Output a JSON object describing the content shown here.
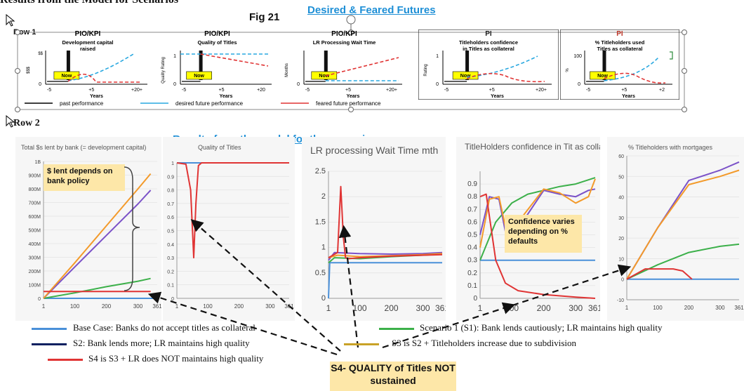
{
  "header": {
    "title": "Results from the Model for Scenarios",
    "fig_label": "Fig 21",
    "desired_feared": "Desired & Feared Futures",
    "results_heading": "Results from the model for the scenarios",
    "row1_label": "Row 1",
    "row2_label": "Row 2"
  },
  "top_panels": [
    {
      "heading": "PIO/KPI",
      "title": "Development capital raised",
      "ylabel": "$$$",
      "yaxis": "$$",
      "xlabel": "Years",
      "ticks": [
        "-5",
        "+5",
        "+20+"
      ],
      "now": "Now",
      "zero": "0"
    },
    {
      "heading": "PIO/KPI",
      "title": "Quality of Titles",
      "ylabel": "Quality Rating",
      "xlabel": "Years",
      "ticks": [
        "-5",
        "+5",
        "+20"
      ],
      "now": "Now",
      "zero": "0",
      "one": "1"
    },
    {
      "heading": "PIO/KPI",
      "title": "LR Processing Wait Time",
      "ylabel": "Months",
      "xlabel": "Years",
      "ticks": [
        "-5",
        "+5",
        "+20+"
      ],
      "now": "Now",
      "zero": "0"
    },
    {
      "heading": "PI",
      "title": "Titleholders confidence in Titles as collateral",
      "ylabel": "Rating",
      "xlabel": "Years",
      "ticks": [
        "-5",
        "+5",
        "+20+"
      ],
      "now": "Now",
      "zero": "0",
      "one": "1"
    },
    {
      "heading": "PI",
      "title": "% Titleholders used Titles as collateral",
      "ylabel": "%",
      "xlabel": "Years",
      "ticks": [
        "-5",
        "+5",
        "+2"
      ],
      "now": "Now",
      "zero": "0",
      "hundred": "100"
    }
  ],
  "top_legend": {
    "past": "past performance",
    "desired": "desired future performance",
    "feared": "feared future performance"
  },
  "chart_titles": [
    "Total $s lent by bank (= development capital)",
    "Quality of Titles",
    "LR processing Wait Time mth",
    "TitleHolders confidence in Tit as collat",
    "% Titleholders with mortgages"
  ],
  "notes": {
    "bank_policy": "$ lent depends on bank policy",
    "confidence": "Confidence varies depending on % defaults",
    "s4_quality": "S4- QUALITY of Titles NOT sustained"
  },
  "legend": {
    "base": "Base Case: Banks do not accept titles as collateral",
    "s1": "Scenario 1 (S1): Bank lends cautiously; LR maintains high quality",
    "s2": "S2: Bank lends more; LR maintains high quality",
    "s3": "S3 is S2 + Titleholders increase due to subdivision",
    "s4": "S4 is S3 + LR does NOT maintains high quality"
  },
  "colors": {
    "base": "#4a90d9",
    "s1": "#3cb04a",
    "s2": "#7b52c8",
    "s3": "#f39a2a",
    "s4": "#e03434",
    "s2_legend": "#0a2060",
    "s3_legend": "#c9a227",
    "accent": "#1e8fd6",
    "note_bg": "#fde7a8"
  },
  "chart_data": [
    {
      "type": "line",
      "title": "Total $s lent by bank (= development capital)",
      "x_ticks": [
        "1",
        "100",
        "200",
        "300",
        "361"
      ],
      "y_ticks": [
        "0",
        "100M",
        "200M",
        "300M",
        "400M",
        "500M",
        "600M",
        "700M",
        "800M",
        "900M",
        "1B"
      ],
      "ylim": [
        0,
        1000
      ],
      "series": [
        {
          "key": "base",
          "x": [
            1,
            361
          ],
          "y": [
            0,
            0
          ]
        },
        {
          "key": "s1",
          "x": [
            1,
            100,
            200,
            300,
            340
          ],
          "y": [
            0,
            40,
            85,
            125,
            145
          ]
        },
        {
          "key": "s2",
          "x": [
            1,
            100,
            200,
            300,
            340
          ],
          "y": [
            0,
            230,
            460,
            690,
            790
          ]
        },
        {
          "key": "s3",
          "x": [
            1,
            100,
            200,
            300,
            340
          ],
          "y": [
            0,
            260,
            530,
            800,
            910
          ]
        },
        {
          "key": "s4",
          "x": [
            1,
            100,
            200,
            300,
            340
          ],
          "y": [
            50,
            50,
            50,
            50,
            50
          ]
        }
      ]
    },
    {
      "type": "line",
      "title": "Quality of Titles",
      "x_ticks": [
        "1",
        "100",
        "200",
        "300",
        "361"
      ],
      "y_ticks": [
        "0",
        "0.1",
        "0.2",
        "0.3",
        "0.4",
        "0.5",
        "0.6",
        "0.7",
        "0.8",
        "0.9",
        "1"
      ],
      "ylim": [
        0,
        1
      ],
      "series": [
        {
          "key": "base",
          "x": [
            1,
            361
          ],
          "y": [
            1,
            1
          ]
        },
        {
          "key": "s4",
          "x": [
            1,
            30,
            45,
            55,
            62,
            70,
            80,
            361
          ],
          "y": [
            1,
            0.99,
            0.8,
            0.3,
            0.7,
            0.98,
            1,
            1
          ]
        }
      ]
    },
    {
      "type": "line",
      "title": "LR processing Wait Time mth",
      "x_ticks": [
        "1",
        "100",
        "200",
        "300",
        "361"
      ],
      "y_ticks": [
        "0",
        "0.5",
        "1",
        "1.5",
        "2",
        "2.5"
      ],
      "ylim": [
        0,
        2.5
      ],
      "series": [
        {
          "key": "base",
          "x": [
            1,
            5,
            361
          ],
          "y": [
            0,
            0.7,
            0.7
          ]
        },
        {
          "key": "s1",
          "x": [
            1,
            20,
            100,
            200,
            300,
            361
          ],
          "y": [
            0.7,
            0.8,
            0.78,
            0.82,
            0.85,
            0.87
          ]
        },
        {
          "key": "s2",
          "x": [
            1,
            20,
            100,
            200,
            300,
            361
          ],
          "y": [
            0.75,
            0.9,
            0.88,
            0.87,
            0.88,
            0.9
          ]
        },
        {
          "key": "s3",
          "x": [
            1,
            30,
            100,
            200,
            300,
            361
          ],
          "y": [
            0.8,
            0.85,
            0.82,
            0.84,
            0.86,
            0.88
          ]
        },
        {
          "key": "s4",
          "x": [
            1,
            30,
            40,
            48,
            55,
            65,
            100,
            200,
            361
          ],
          "y": [
            0.8,
            0.9,
            2.2,
            1.2,
            0.8,
            0.78,
            0.8,
            0.83,
            0.86
          ]
        }
      ]
    },
    {
      "type": "line",
      "title": "TitleHolders confidence in Tit as collat",
      "x_ticks": [
        "1",
        "100",
        "200",
        "300",
        "361"
      ],
      "y_ticks": [
        "0",
        "0.1",
        "0.2",
        "0.3",
        "0.4",
        "0.5",
        "0.6",
        "0.7",
        "0.8",
        "0.9"
      ],
      "ylim": [
        0,
        1
      ],
      "series": [
        {
          "key": "base",
          "x": [
            1,
            361
          ],
          "y": [
            0.3,
            0.3
          ]
        },
        {
          "key": "s1",
          "x": [
            1,
            50,
            100,
            150,
            200,
            250,
            300,
            361
          ],
          "y": [
            0.3,
            0.6,
            0.75,
            0.82,
            0.85,
            0.88,
            0.9,
            0.95
          ]
        },
        {
          "key": "s2",
          "x": [
            1,
            30,
            60,
            90,
            120,
            200,
            250,
            300,
            340,
            361
          ],
          "y": [
            0.5,
            0.8,
            0.78,
            0.4,
            0.55,
            0.85,
            0.82,
            0.8,
            0.85,
            0.86
          ]
        },
        {
          "key": "s3",
          "x": [
            1,
            30,
            60,
            90,
            120,
            200,
            250,
            300,
            340,
            361
          ],
          "y": [
            0.4,
            0.78,
            0.8,
            0.45,
            0.6,
            0.86,
            0.83,
            0.75,
            0.8,
            0.94
          ]
        },
        {
          "key": "s4",
          "x": [
            1,
            20,
            50,
            80,
            120,
            200,
            300,
            361
          ],
          "y": [
            0.8,
            0.82,
            0.3,
            0.12,
            0.06,
            0.03,
            0.01,
            0.0
          ]
        }
      ]
    },
    {
      "type": "line",
      "title": "% Titleholders with mortgages",
      "x_ticks": [
        "1",
        "100",
        "200",
        "300",
        "361"
      ],
      "y_ticks": [
        "-10",
        "0",
        "10",
        "20",
        "30",
        "40",
        "50",
        "60"
      ],
      "ylim": [
        -10,
        60
      ],
      "series": [
        {
          "key": "base",
          "x": [
            1,
            361
          ],
          "y": [
            0,
            0
          ]
        },
        {
          "key": "s1",
          "x": [
            1,
            100,
            200,
            300,
            361
          ],
          "y": [
            0,
            7,
            13,
            16,
            17
          ]
        },
        {
          "key": "s2",
          "x": [
            1,
            100,
            200,
            300,
            361
          ],
          "y": [
            0,
            25,
            48,
            53,
            57
          ]
        },
        {
          "key": "s3",
          "x": [
            1,
            100,
            200,
            300,
            361
          ],
          "y": [
            0,
            25,
            46,
            50,
            53
          ]
        },
        {
          "key": "s4",
          "x": [
            1,
            60,
            150,
            180,
            210
          ],
          "y": [
            0,
            5,
            5,
            4,
            0
          ]
        }
      ]
    }
  ]
}
